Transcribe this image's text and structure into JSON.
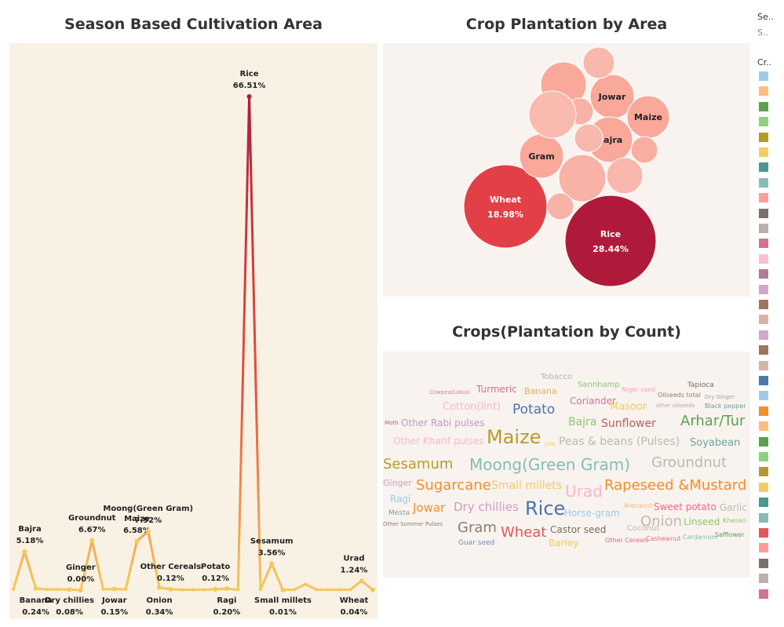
{
  "line_chart": {
    "title": "Season Based Cultivation Area",
    "chart_data": {
      "type": "line",
      "title": "Season Based Cultivation Area",
      "unit": "%",
      "points": [
        {
          "label": "",
          "value": 0.1,
          "show": false
        },
        {
          "label": "Bajra",
          "value": 5.18,
          "show": true,
          "pos": "above"
        },
        {
          "label": "Banana",
          "value": 0.24,
          "show": true,
          "pos": "below"
        },
        {
          "label": "",
          "value": 0.1,
          "show": false
        },
        {
          "label": "",
          "value": 0.1,
          "show": false
        },
        {
          "label": "Dry chillies",
          "value": 0.08,
          "show": true,
          "pos": "below"
        },
        {
          "label": "Ginger",
          "value": 0.0,
          "show": true,
          "pos": "above"
        },
        {
          "label": "Groundnut",
          "value": 6.67,
          "show": true,
          "pos": "above"
        },
        {
          "label": "",
          "value": 0.1,
          "show": false
        },
        {
          "label": "Jowar",
          "value": 0.15,
          "show": true,
          "pos": "below"
        },
        {
          "label": "",
          "value": 0.1,
          "show": false
        },
        {
          "label": "Maize",
          "value": 6.58,
          "show": true,
          "pos": "above"
        },
        {
          "label": "Moong(Green Gram)",
          "value": 7.92,
          "show": true,
          "pos": "above"
        },
        {
          "label": "Onion",
          "value": 0.34,
          "show": true,
          "pos": "below"
        },
        {
          "label": "Other Cereals",
          "value": 0.12,
          "show": true,
          "pos": "above"
        },
        {
          "label": "",
          "value": 0.05,
          "show": false
        },
        {
          "label": "",
          "value": 0.05,
          "show": false
        },
        {
          "label": "",
          "value": 0.05,
          "show": false
        },
        {
          "label": "Potato",
          "value": 0.12,
          "show": true,
          "pos": "above"
        },
        {
          "label": "Ragi",
          "value": 0.2,
          "show": true,
          "pos": "below"
        },
        {
          "label": "",
          "value": 0.05,
          "show": false
        },
        {
          "label": "Rice",
          "value": 66.51,
          "show": true,
          "pos": "above"
        },
        {
          "label": "",
          "value": 0.08,
          "show": false
        },
        {
          "label": "Sesamum",
          "value": 3.56,
          "show": true,
          "pos": "above"
        },
        {
          "label": "Small millets",
          "value": 0.01,
          "show": true,
          "pos": "below"
        },
        {
          "label": "",
          "value": 0.05,
          "show": false
        },
        {
          "label": "",
          "value": 0.8,
          "show": false
        },
        {
          "label": "",
          "value": 0.05,
          "show": false
        },
        {
          "label": "",
          "value": 0.05,
          "show": false
        },
        {
          "label": "",
          "value": 0.05,
          "show": false
        },
        {
          "label": "",
          "value": 0.05,
          "show": false
        },
        {
          "label": "Urad",
          "value": 1.24,
          "show": true,
          "pos": "above"
        },
        {
          "label": "Wheat",
          "value": 0.04,
          "show": true,
          "pos": "below"
        }
      ],
      "ylim": [
        0,
        70
      ],
      "colors": {
        "low": "#f5c85a",
        "mid": "#e4543f",
        "high": "#b01f3a"
      }
    }
  },
  "bubble_chart": {
    "title": "Crop Plantation by Area",
    "chart_data": {
      "type": "bubble",
      "bubbles": [
        {
          "name": "Rice",
          "value": "28.44%",
          "show_label": true,
          "color": "#b01a3a",
          "text_color": "#ffffff"
        },
        {
          "name": "Wheat",
          "value": "18.98%",
          "show_label": true,
          "color": "#e33f47",
          "text_color": "#ffffff"
        },
        {
          "name": "Jowar",
          "value": "",
          "show_label": true,
          "color": "#f9a89a",
          "text_color": "#222222"
        },
        {
          "name": "Maize",
          "value": "",
          "show_label": true,
          "color": "#f9a89a",
          "text_color": "#222222"
        },
        {
          "name": "Bajra",
          "value": "",
          "show_label": true,
          "color": "#f9a89a",
          "text_color": "#222222"
        },
        {
          "name": "Gram",
          "value": "",
          "show_label": true,
          "color": "#f9a89a",
          "text_color": "#222222"
        },
        {
          "name": "",
          "value": "",
          "show_label": false,
          "color": "#f9a89a"
        },
        {
          "name": "",
          "value": "",
          "show_label": false,
          "color": "#f9b8ad"
        },
        {
          "name": "",
          "value": "",
          "show_label": false,
          "color": "#f9b2a6"
        },
        {
          "name": "",
          "value": "",
          "show_label": false,
          "color": "#f9bab0"
        },
        {
          "name": "",
          "value": "",
          "show_label": false,
          "color": "#f9b8ad"
        },
        {
          "name": "",
          "value": "",
          "show_label": false,
          "color": "#f9b2a6"
        },
        {
          "name": "",
          "value": "",
          "show_label": false,
          "color": "#f9b8ad"
        },
        {
          "name": "",
          "value": "",
          "show_label": false,
          "color": "#f9aea2"
        },
        {
          "name": "",
          "value": "",
          "show_label": false,
          "color": "#f9b2a6"
        }
      ]
    }
  },
  "word_cloud": {
    "title": "Crops(Plantation by Count)",
    "words": [
      {
        "text": "Tobacco",
        "color": "#b8b0a8",
        "size": 10
      },
      {
        "text": "Turmeric",
        "color": "#d6729a",
        "size": 12
      },
      {
        "text": "Banana",
        "color": "#e8b44a",
        "size": 11
      },
      {
        "text": "Sannhamp",
        "color": "#8cc770",
        "size": 10
      },
      {
        "text": "Niger seed",
        "color": "#f5a4c0",
        "size": 8
      },
      {
        "text": "Oilseeds total",
        "color": "#8a7d76",
        "size": 8
      },
      {
        "text": "Tapioca",
        "color": "#7a6c66",
        "size": 9
      },
      {
        "text": "Cowpea(Lobia)",
        "color": "#d77ba8",
        "size": 7
      },
      {
        "text": "Dry Ginger",
        "color": "#a6a09a",
        "size": 7
      },
      {
        "text": "Coriander",
        "color": "#d76fa2",
        "size": 12
      },
      {
        "text": "other oilseeds",
        "color": "#c49ac4",
        "size": 7
      },
      {
        "text": "Black pepper",
        "color": "#6aa39f",
        "size": 8
      },
      {
        "text": "Cotton(lint)",
        "color": "#f9b8cc",
        "size": 13
      },
      {
        "text": "Potato",
        "color": "#4a72b0",
        "size": 17
      },
      {
        "text": "Masoor",
        "color": "#f0cc60",
        "size": 13
      },
      {
        "text": "Moth",
        "color": "#c0605e",
        "size": 7
      },
      {
        "text": "Other Rabi pulses",
        "color": "#c49ac4",
        "size": 12
      },
      {
        "text": "Bajra",
        "color": "#8cc770",
        "size": 14
      },
      {
        "text": "Sunflower",
        "color": "#c05a5a",
        "size": 14
      },
      {
        "text": "Arhar/Tur",
        "color": "#59a14f",
        "size": 18
      },
      {
        "text": "Other Kharif pulses",
        "color": "#f9b8cc",
        "size": 12
      },
      {
        "text": "Maize",
        "color": "#b89a2c",
        "size": 24
      },
      {
        "text": "Jute",
        "color": "#f0cc60",
        "size": 7
      },
      {
        "text": "Peas & beans (Pulses)",
        "color": "#c0b8b0",
        "size": 14
      },
      {
        "text": "Soyabean",
        "color": "#6aa39f",
        "size": 13
      },
      {
        "text": "Sesamum",
        "color": "#b89a2c",
        "size": 18
      },
      {
        "text": "Moong(Green Gram)",
        "color": "#86bcb6",
        "size": 20
      },
      {
        "text": "Groundnut",
        "color": "#c0b8b0",
        "size": 18
      },
      {
        "text": "Ginger",
        "color": "#d69ac4",
        "size": 11
      },
      {
        "text": "Sugarcane",
        "color": "#f28e2b",
        "size": 18
      },
      {
        "text": "Small millets",
        "color": "#f0cc60",
        "size": 14
      },
      {
        "text": "Urad",
        "color": "#f9b8cc",
        "size": 20
      },
      {
        "text": "Rapeseed &Mustard",
        "color": "#f28e2b",
        "size": 18
      },
      {
        "text": "Ragi",
        "color": "#a0c8e8",
        "size": 12
      },
      {
        "text": "Jowar",
        "color": "#f28e2b",
        "size": 15
      },
      {
        "text": "Dry chillies",
        "color": "#d69ac4",
        "size": 15
      },
      {
        "text": "Rice",
        "color": "#4a72b0",
        "size": 24
      },
      {
        "text": "Arecanut",
        "color": "#f7b27a",
        "size": 8
      },
      {
        "text": "Sweet potato",
        "color": "#f06a8a",
        "size": 12
      },
      {
        "text": "Garlic",
        "color": "#c0b8b0",
        "size": 12
      },
      {
        "text": "Mesta",
        "color": "#7aa0b0",
        "size": 9
      },
      {
        "text": "Horse-gram",
        "color": "#a0c8e8",
        "size": 12
      },
      {
        "text": "Coconut",
        "color": "#c0b8b0",
        "size": 10
      },
      {
        "text": "Onion",
        "color": "#c0b8b0",
        "size": 18
      },
      {
        "text": "Linseed",
        "color": "#8cc770",
        "size": 12
      },
      {
        "text": "Khesari",
        "color": "#8cc770",
        "size": 8
      },
      {
        "text": "Other Summer Pulses",
        "color": "#8a7d76",
        "size": 7
      },
      {
        "text": "Gram",
        "color": "#8a7d76",
        "size": 18
      },
      {
        "text": "Wheat",
        "color": "#e15759",
        "size": 18
      },
      {
        "text": "Castor seed",
        "color": "#7a6c66",
        "size": 12
      },
      {
        "text": "Cardamom",
        "color": "#86bcb6",
        "size": 8
      },
      {
        "text": "Safflower",
        "color": "#59a14f",
        "size": 8
      },
      {
        "text": "Other Cereals",
        "color": "#e06a8a",
        "size": 8
      },
      {
        "text": "Cashewnut",
        "color": "#f06a8a",
        "size": 8
      },
      {
        "text": "Guar seed",
        "color": "#6a8cbf",
        "size": 9
      },
      {
        "text": "Barley",
        "color": "#f0cc60",
        "size": 12
      }
    ]
  },
  "legend": {
    "season_title": "Se..",
    "season_value": "S..",
    "crop_title": "Cr..",
    "swatches": [
      "#a0cbe8",
      "#ffbe7d",
      "#59a14f",
      "#8cd17d",
      "#b6992d",
      "#f1ce63",
      "#499894",
      "#86bcb6",
      "#ff9d9a",
      "#79706e",
      "#bab0ac",
      "#d37295",
      "#fabfd2",
      "#b07aa1",
      "#d4a6c8",
      "#9d7660",
      "#d7b5a6",
      "#d4a6c8",
      "#9d7660",
      "#d7b5a6",
      "#4e79a7",
      "#a0cbe8",
      "#f28e2b",
      "#ffbe7d",
      "#59a14f",
      "#8cd17d",
      "#b6992d",
      "#f1ce63",
      "#499894",
      "#86bcb6",
      "#e15759",
      "#ff9d9a",
      "#79706e",
      "#bab0ac",
      "#d37295"
    ]
  }
}
